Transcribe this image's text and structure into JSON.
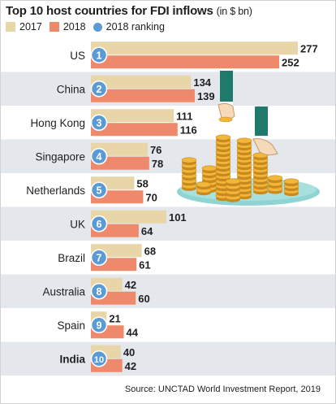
{
  "chart_data": {
    "type": "bar",
    "orientation": "horizontal",
    "title": "Top 10 host countries for FDI inflows",
    "unit": "(in $ bn)",
    "legend": [
      "2017",
      "2018",
      "2018 ranking"
    ],
    "categories": [
      "US",
      "China",
      "Hong Kong",
      "Singapore",
      "Netherlands",
      "UK",
      "Brazil",
      "Australia",
      "Spain",
      "India"
    ],
    "highlighted_category": "India",
    "rankings": [
      1,
      2,
      3,
      4,
      5,
      6,
      7,
      8,
      9,
      10
    ],
    "series": [
      {
        "name": "2017",
        "values": [
          277,
          134,
          111,
          76,
          58,
          101,
          68,
          42,
          21,
          40
        ]
      },
      {
        "name": "2018",
        "values": [
          252,
          139,
          116,
          78,
          70,
          64,
          61,
          60,
          44,
          42
        ]
      }
    ],
    "xlim": [
      0,
      277
    ],
    "grid": false,
    "legend_position": "top-left",
    "source": "Source: UNCTAD World Investment Report, 2019",
    "colors": {
      "bar_2017": "#e8d6a8",
      "bar_2018": "#ee8a6b",
      "ranking_circle": "#5b9bd5",
      "band_shaded": "#e4e7ec",
      "text": "#1f1f1f"
    },
    "illustration": {
      "description_icon": "coins-and-hands-icon"
    }
  }
}
